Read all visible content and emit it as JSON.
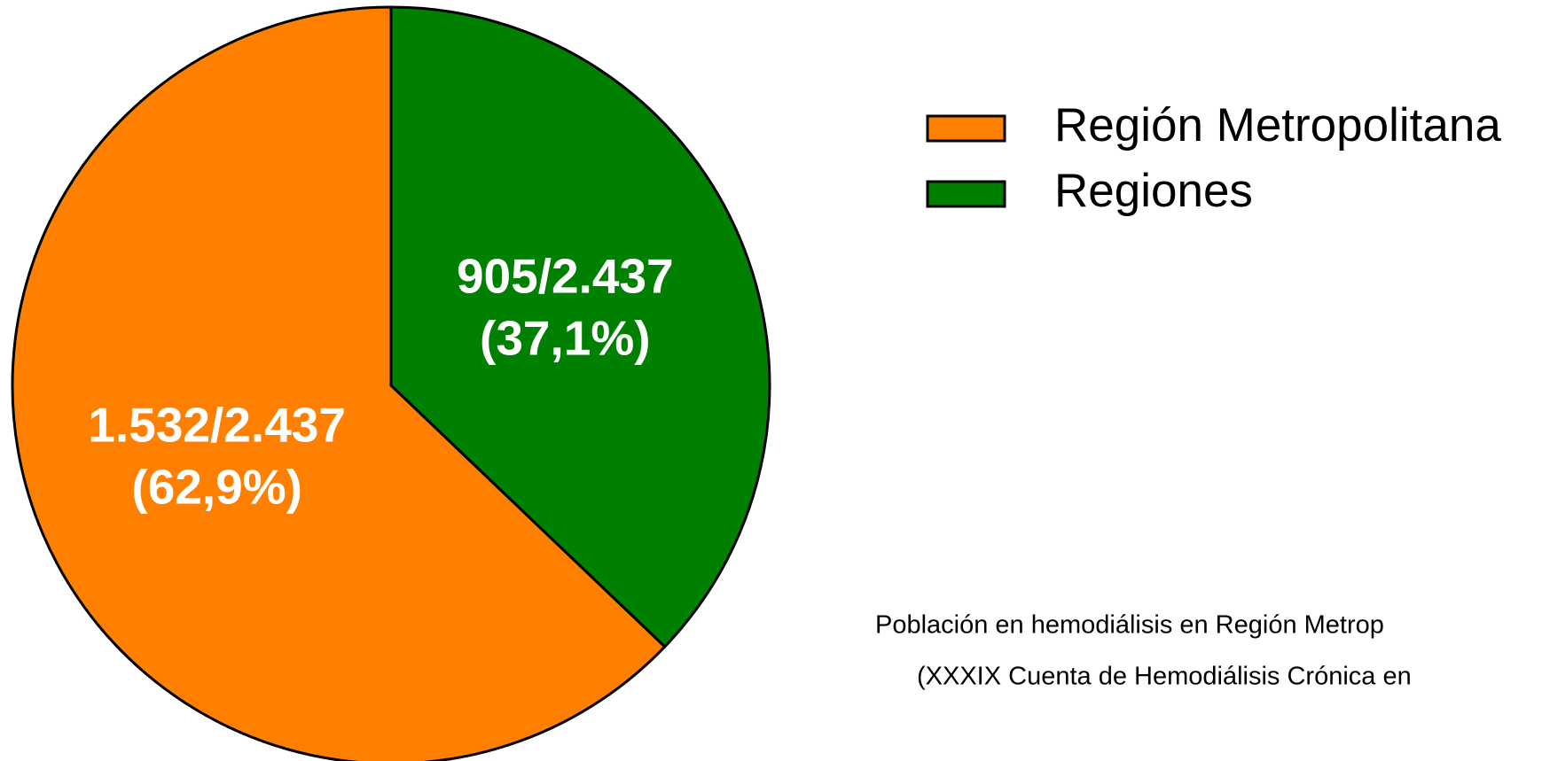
{
  "chart_data": {
    "type": "pie",
    "categories": [
      "Región Metropolitana",
      "Regiones"
    ],
    "values": [
      1532,
      905
    ],
    "value_labels": [
      [
        "1.532/2.437",
        "(62,9%)"
      ],
      [
        "905/2.437",
        "(37,1%)"
      ]
    ],
    "colors": [
      "#ff8000",
      "#008000"
    ],
    "legend": "right",
    "caption": [
      "Población en hemodiálisis en Región Metrop",
      "(XXXIX Cuenta de Hemodiálisis Crónica en"
    ]
  }
}
